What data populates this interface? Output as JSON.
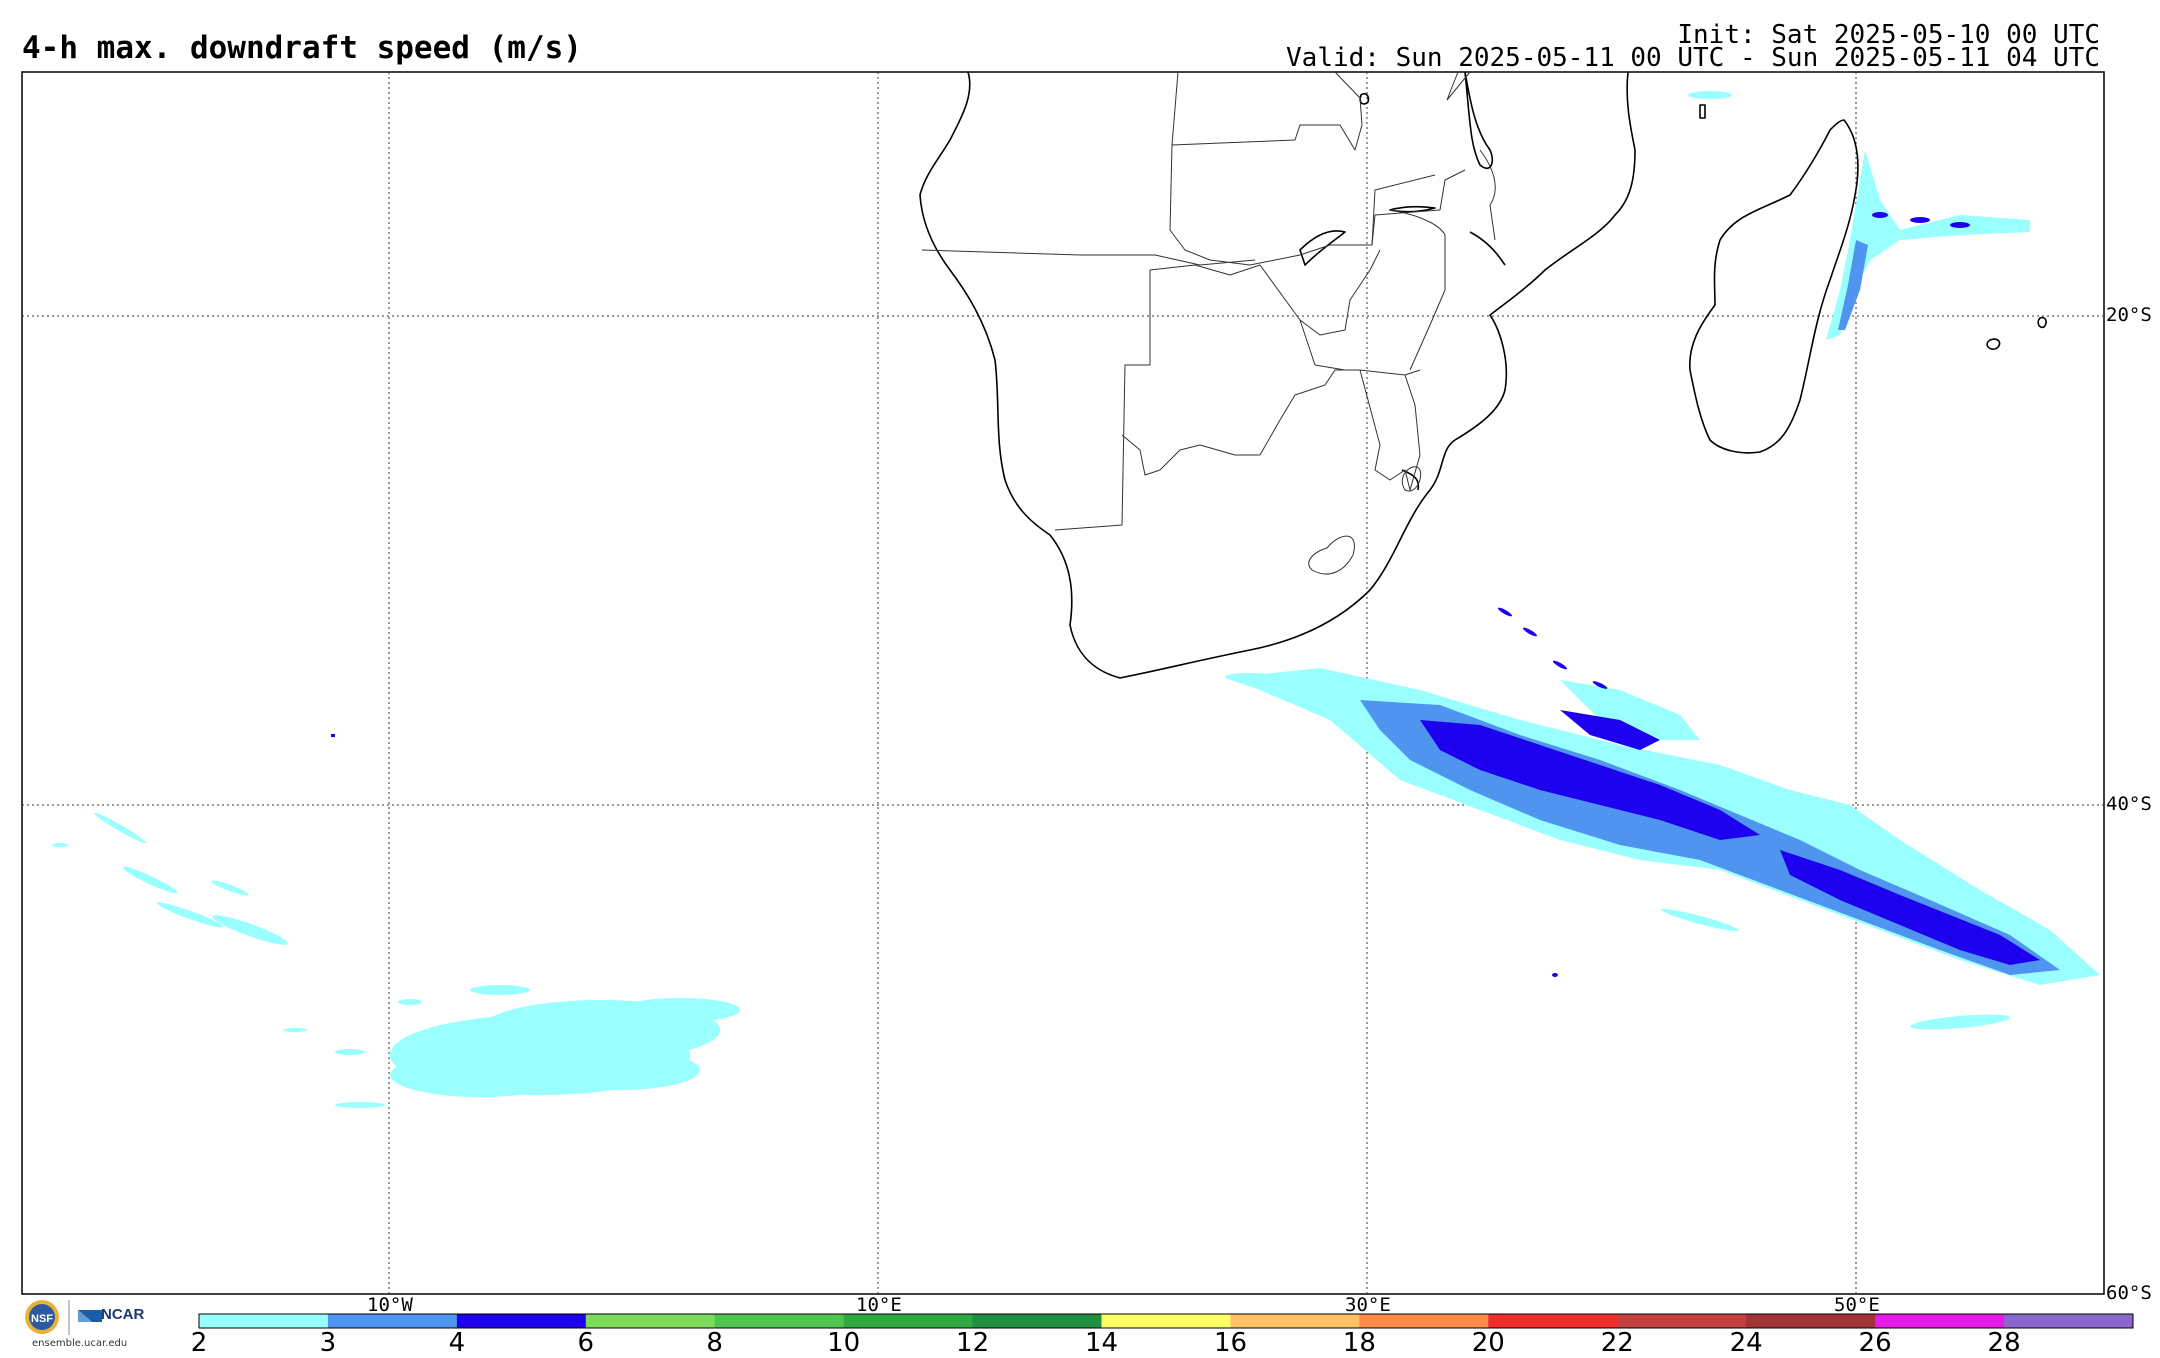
{
  "header": {
    "title": "4-h max. downdraft speed (m/s)",
    "init": "Init: Sat 2025-05-10 00 UTC",
    "valid": "Valid: Sun 2025-05-11 00 UTC - Sun 2025-05-11 04 UTC"
  },
  "map": {
    "lat_labels": [
      "20°S",
      "40°S",
      "60°S"
    ],
    "lon_labels": [
      "10°W",
      "10°E",
      "30°E",
      "50°E"
    ]
  },
  "colorbar": {
    "ticks": [
      "2",
      "3",
      "4",
      "6",
      "8",
      "10",
      "12",
      "14",
      "16",
      "18",
      "20",
      "22",
      "24",
      "26",
      "28"
    ],
    "colors": [
      "#99ffff",
      "#4f94ef",
      "#1d00ee",
      "#7ddb5b",
      "#4fc44f",
      "#2fa93f",
      "#209040",
      "#ffff66",
      "#ffc266",
      "#ff8a4a",
      "#f22b2b",
      "#c43f3f",
      "#a03333",
      "#e61ae6",
      "#8b66cc"
    ]
  },
  "footer": {
    "org": "NCAR",
    "url": "ensemble.ucar.edu",
    "nsf": "NSF"
  }
}
